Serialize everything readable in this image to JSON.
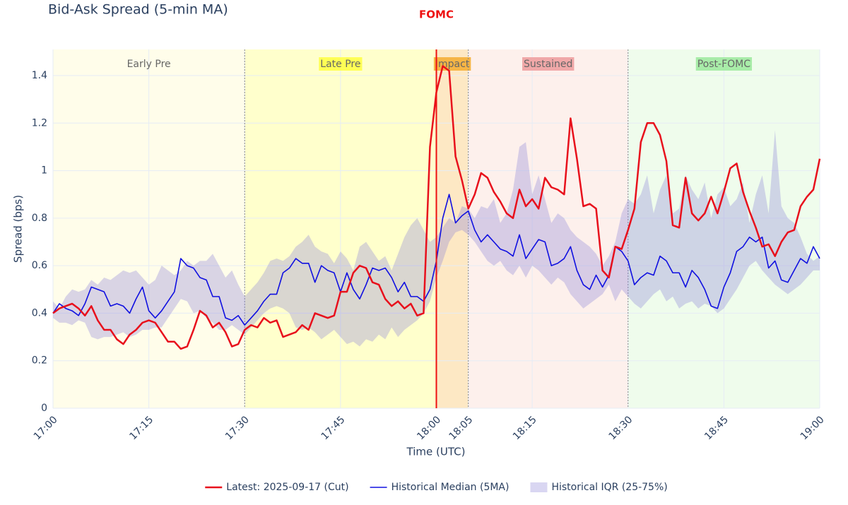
{
  "chart_data": {
    "type": "line",
    "title": "Bid-Ask Spread (5-min MA)",
    "xlabel": "Time (UTC)",
    "ylabel": "Spread (bps)",
    "xlim": [
      "17:00",
      "19:00"
    ],
    "ylim": [
      0,
      1.51
    ],
    "xticks": [
      "17:00",
      "17:15",
      "17:30",
      "17:45",
      "18:00",
      "18:05",
      "18:15",
      "18:30",
      "18:45",
      "19:00"
    ],
    "yticks": [
      0,
      0.2,
      0.4,
      0.6,
      0.8,
      1,
      1.2,
      1.4
    ],
    "grid": true,
    "legend": "bottom",
    "events": [
      {
        "x": "18:00",
        "label": "FOMC",
        "color": "#ee1111"
      }
    ],
    "regions": [
      {
        "name": "Early Pre",
        "start": "17:00",
        "end": "17:30",
        "color": "#fffdea",
        "label_color": "none"
      },
      {
        "name": "Late Pre",
        "start": "17:30",
        "end": "18:00",
        "color": "#ffffcc",
        "label_color": "#ffff55"
      },
      {
        "name": "Impact",
        "start": "18:00",
        "end": "18:05",
        "color": "#fde8c4",
        "label_color": "#f6b545"
      },
      {
        "name": "Sustained",
        "start": "18:05",
        "end": "18:30",
        "color": "#fdf0ec",
        "label_color": "#f0a8a8"
      },
      {
        "name": "Post-FOMC",
        "start": "18:30",
        "end": "19:00",
        "color": "#effcec",
        "label_color": "#a8eca8"
      }
    ],
    "x": [
      "17:00",
      "17:01",
      "17:02",
      "17:03",
      "17:04",
      "17:05",
      "17:06",
      "17:07",
      "17:08",
      "17:09",
      "17:10",
      "17:11",
      "17:12",
      "17:13",
      "17:14",
      "17:15",
      "17:16",
      "17:17",
      "17:18",
      "17:19",
      "17:20",
      "17:21",
      "17:22",
      "17:23",
      "17:24",
      "17:25",
      "17:26",
      "17:27",
      "17:28",
      "17:29",
      "17:30",
      "17:31",
      "17:32",
      "17:33",
      "17:34",
      "17:35",
      "17:36",
      "17:37",
      "17:38",
      "17:39",
      "17:40",
      "17:41",
      "17:42",
      "17:43",
      "17:44",
      "17:45",
      "17:46",
      "17:47",
      "17:48",
      "17:49",
      "17:50",
      "17:51",
      "17:52",
      "17:53",
      "17:54",
      "17:55",
      "17:56",
      "17:57",
      "17:58",
      "17:59",
      "18:00",
      "18:01",
      "18:02",
      "18:03",
      "18:04",
      "18:05",
      "18:06",
      "18:07",
      "18:08",
      "18:09",
      "18:10",
      "18:11",
      "18:12",
      "18:13",
      "18:14",
      "18:15",
      "18:16",
      "18:17",
      "18:18",
      "18:19",
      "18:20",
      "18:21",
      "18:22",
      "18:23",
      "18:24",
      "18:25",
      "18:26",
      "18:27",
      "18:28",
      "18:29",
      "18:30",
      "18:31",
      "18:32",
      "18:33",
      "18:34",
      "18:35",
      "18:36",
      "18:37",
      "18:38",
      "18:39",
      "18:40",
      "18:41",
      "18:42",
      "18:43",
      "18:44",
      "18:45",
      "18:46",
      "18:47",
      "18:48",
      "18:49",
      "18:50",
      "18:51",
      "18:52",
      "18:53",
      "18:54",
      "18:55",
      "18:56",
      "18:57",
      "18:58",
      "18:59",
      "19:00"
    ],
    "band": {
      "name": "Historical IQR (25-75%)",
      "color": "rgba(140,130,215,0.33)",
      "low": [
        0.38,
        0.36,
        0.36,
        0.35,
        0.37,
        0.36,
        0.3,
        0.29,
        0.3,
        0.3,
        0.31,
        0.32,
        0.3,
        0.31,
        0.33,
        0.33,
        0.34,
        0.34,
        0.38,
        0.42,
        0.46,
        0.45,
        0.4,
        0.41,
        0.38,
        0.36,
        0.33,
        0.33,
        0.35,
        0.33,
        0.31,
        0.34,
        0.37,
        0.4,
        0.42,
        0.43,
        0.42,
        0.4,
        0.34,
        0.33,
        0.34,
        0.32,
        0.29,
        0.31,
        0.33,
        0.3,
        0.27,
        0.28,
        0.26,
        0.29,
        0.28,
        0.31,
        0.29,
        0.34,
        0.3,
        0.33,
        0.35,
        0.37,
        0.4,
        0.45,
        0.55,
        0.62,
        0.7,
        0.74,
        0.75,
        0.73,
        0.7,
        0.66,
        0.62,
        0.6,
        0.62,
        0.58,
        0.56,
        0.6,
        0.55,
        0.6,
        0.58,
        0.55,
        0.52,
        0.55,
        0.53,
        0.48,
        0.45,
        0.42,
        0.44,
        0.46,
        0.48,
        0.52,
        0.45,
        0.5,
        0.47,
        0.44,
        0.42,
        0.45,
        0.48,
        0.5,
        0.45,
        0.47,
        0.42,
        0.44,
        0.45,
        0.42,
        0.44,
        0.43,
        0.4,
        0.42,
        0.46,
        0.5,
        0.55,
        0.6,
        0.62,
        0.58,
        0.55,
        0.52,
        0.5,
        0.48,
        0.5,
        0.52,
        0.55,
        0.58,
        0.58
      ],
      "high": [
        0.45,
        0.42,
        0.47,
        0.5,
        0.49,
        0.5,
        0.54,
        0.52,
        0.55,
        0.54,
        0.56,
        0.58,
        0.57,
        0.58,
        0.55,
        0.52,
        0.54,
        0.6,
        0.58,
        0.56,
        0.58,
        0.62,
        0.6,
        0.62,
        0.62,
        0.65,
        0.6,
        0.55,
        0.58,
        0.52,
        0.47,
        0.5,
        0.53,
        0.57,
        0.62,
        0.63,
        0.62,
        0.64,
        0.68,
        0.7,
        0.73,
        0.68,
        0.66,
        0.65,
        0.61,
        0.66,
        0.63,
        0.58,
        0.68,
        0.7,
        0.66,
        0.62,
        0.64,
        0.58,
        0.65,
        0.72,
        0.77,
        0.8,
        0.75,
        0.7,
        0.72,
        0.76,
        0.8,
        0.78,
        0.85,
        0.84,
        0.8,
        0.85,
        0.84,
        0.88,
        0.78,
        0.82,
        0.92,
        1.1,
        1.12,
        0.9,
        0.98,
        0.88,
        0.78,
        0.82,
        0.8,
        0.75,
        0.72,
        0.7,
        0.68,
        0.65,
        0.6,
        0.64,
        0.7,
        0.82,
        0.88,
        0.86,
        0.9,
        0.98,
        0.82,
        0.92,
        0.98,
        0.82,
        0.84,
        0.98,
        0.92,
        0.88,
        0.95,
        0.8,
        0.9,
        0.93,
        0.85,
        0.88,
        0.95,
        0.78,
        0.9,
        0.98,
        0.82,
        1.17,
        0.85,
        0.8,
        0.78,
        0.72,
        0.65,
        0.62,
        0.64
      ]
    },
    "series": [
      {
        "name": "Latest: 2025-09-17 (Cut)",
        "color": "#e8101c",
        "values": [
          0.4,
          0.42,
          0.43,
          0.44,
          0.42,
          0.39,
          0.43,
          0.37,
          0.33,
          0.33,
          0.29,
          0.27,
          0.31,
          0.33,
          0.36,
          0.37,
          0.36,
          0.32,
          0.28,
          0.28,
          0.25,
          0.26,
          0.33,
          0.41,
          0.39,
          0.34,
          0.36,
          0.32,
          0.26,
          0.27,
          0.33,
          0.35,
          0.34,
          0.38,
          0.36,
          0.37,
          0.3,
          0.31,
          0.32,
          0.35,
          0.33,
          0.4,
          0.39,
          0.38,
          0.39,
          0.49,
          0.49,
          0.57,
          0.6,
          0.59,
          0.53,
          0.52,
          0.46,
          0.43,
          0.45,
          0.42,
          0.44,
          0.39,
          0.4,
          1.1,
          1.33,
          1.44,
          1.42,
          1.06,
          0.96,
          0.84,
          0.9,
          0.99,
          0.97,
          0.91,
          0.87,
          0.82,
          0.8,
          0.92,
          0.85,
          0.88,
          0.84,
          0.97,
          0.93,
          0.92,
          0.9,
          1.22,
          1.05,
          0.85,
          0.86,
          0.84,
          0.58,
          0.55,
          0.68,
          0.67,
          0.75,
          0.84,
          1.12,
          1.2,
          1.2,
          1.15,
          1.04,
          0.77,
          0.76,
          0.97,
          0.82,
          0.79,
          0.82,
          0.89,
          0.82,
          0.91,
          1.01,
          1.03,
          0.91,
          0.83,
          0.76,
          0.68,
          0.69,
          0.64,
          0.7,
          0.74,
          0.75,
          0.85,
          0.89,
          0.92,
          1.05
        ]
      },
      {
        "name": "Historical Median (5MA)",
        "color": "#1010e0",
        "values": [
          0.4,
          0.44,
          0.42,
          0.41,
          0.39,
          0.44,
          0.51,
          0.5,
          0.49,
          0.43,
          0.44,
          0.43,
          0.4,
          0.46,
          0.51,
          0.41,
          0.38,
          0.41,
          0.45,
          0.49,
          0.63,
          0.6,
          0.59,
          0.55,
          0.54,
          0.47,
          0.47,
          0.38,
          0.37,
          0.39,
          0.35,
          0.38,
          0.41,
          0.45,
          0.48,
          0.48,
          0.57,
          0.59,
          0.63,
          0.61,
          0.61,
          0.53,
          0.6,
          0.58,
          0.57,
          0.49,
          0.57,
          0.5,
          0.46,
          0.52,
          0.59,
          0.58,
          0.59,
          0.55,
          0.49,
          0.53,
          0.47,
          0.47,
          0.45,
          0.5,
          0.62,
          0.8,
          0.9,
          0.78,
          0.81,
          0.83,
          0.75,
          0.7,
          0.73,
          0.7,
          0.67,
          0.66,
          0.64,
          0.73,
          0.63,
          0.67,
          0.71,
          0.7,
          0.6,
          0.61,
          0.63,
          0.68,
          0.58,
          0.52,
          0.5,
          0.56,
          0.51,
          0.56,
          0.68,
          0.66,
          0.62,
          0.52,
          0.55,
          0.57,
          0.56,
          0.64,
          0.62,
          0.57,
          0.57,
          0.51,
          0.58,
          0.55,
          0.5,
          0.43,
          0.42,
          0.51,
          0.57,
          0.66,
          0.68,
          0.72,
          0.7,
          0.72,
          0.59,
          0.62,
          0.54,
          0.53,
          0.58,
          0.63,
          0.61,
          0.68,
          0.63
        ]
      }
    ]
  }
}
